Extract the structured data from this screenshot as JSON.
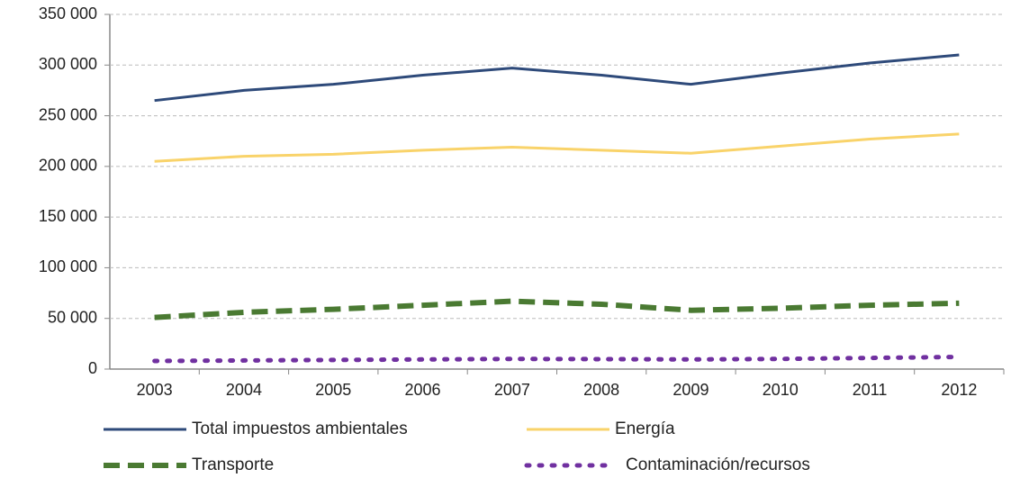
{
  "chart_data": {
    "type": "line",
    "categories": [
      "2003",
      "2004",
      "2005",
      "2006",
      "2007",
      "2008",
      "2009",
      "2010",
      "2011",
      "2012"
    ],
    "series": [
      {
        "name": "Total impuestos ambientales",
        "color": "#2e4a7a",
        "line_style": "solid",
        "values": [
          265000,
          275000,
          281000,
          290000,
          297000,
          290000,
          281000,
          292000,
          302000,
          310000
        ]
      },
      {
        "name": "Energía",
        "color": "#f9d36a",
        "line_style": "solid",
        "values": [
          205000,
          210000,
          212000,
          216000,
          219000,
          216000,
          213000,
          220000,
          227000,
          232000
        ]
      },
      {
        "name": "Transporte",
        "color": "#4a7a32",
        "line_style": "dashed",
        "values": [
          51000,
          56000,
          59000,
          63000,
          67000,
          64000,
          58000,
          60000,
          63000,
          65000
        ]
      },
      {
        "name": "Contaminación/recursos",
        "color": "#7030a0",
        "line_style": "dotted",
        "values": [
          8000,
          8500,
          9000,
          9500,
          10000,
          9800,
          9500,
          10000,
          11000,
          12000
        ]
      }
    ],
    "ylim": [
      0,
      350000
    ],
    "yticks": [
      0,
      {
        "value": 50000,
        "label": "50 000"
      },
      {
        "value": 100000,
        "label": "100 000"
      },
      {
        "value": 150000,
        "label": "150 000"
      },
      {
        "value": 200000,
        "label": "200 000"
      },
      {
        "value": 250000,
        "label": "250 000"
      },
      {
        "value": 300000,
        "label": "300 000"
      },
      {
        "value": 350000,
        "label": "350 000"
      }
    ],
    "grid": true,
    "legend": "bottom"
  }
}
